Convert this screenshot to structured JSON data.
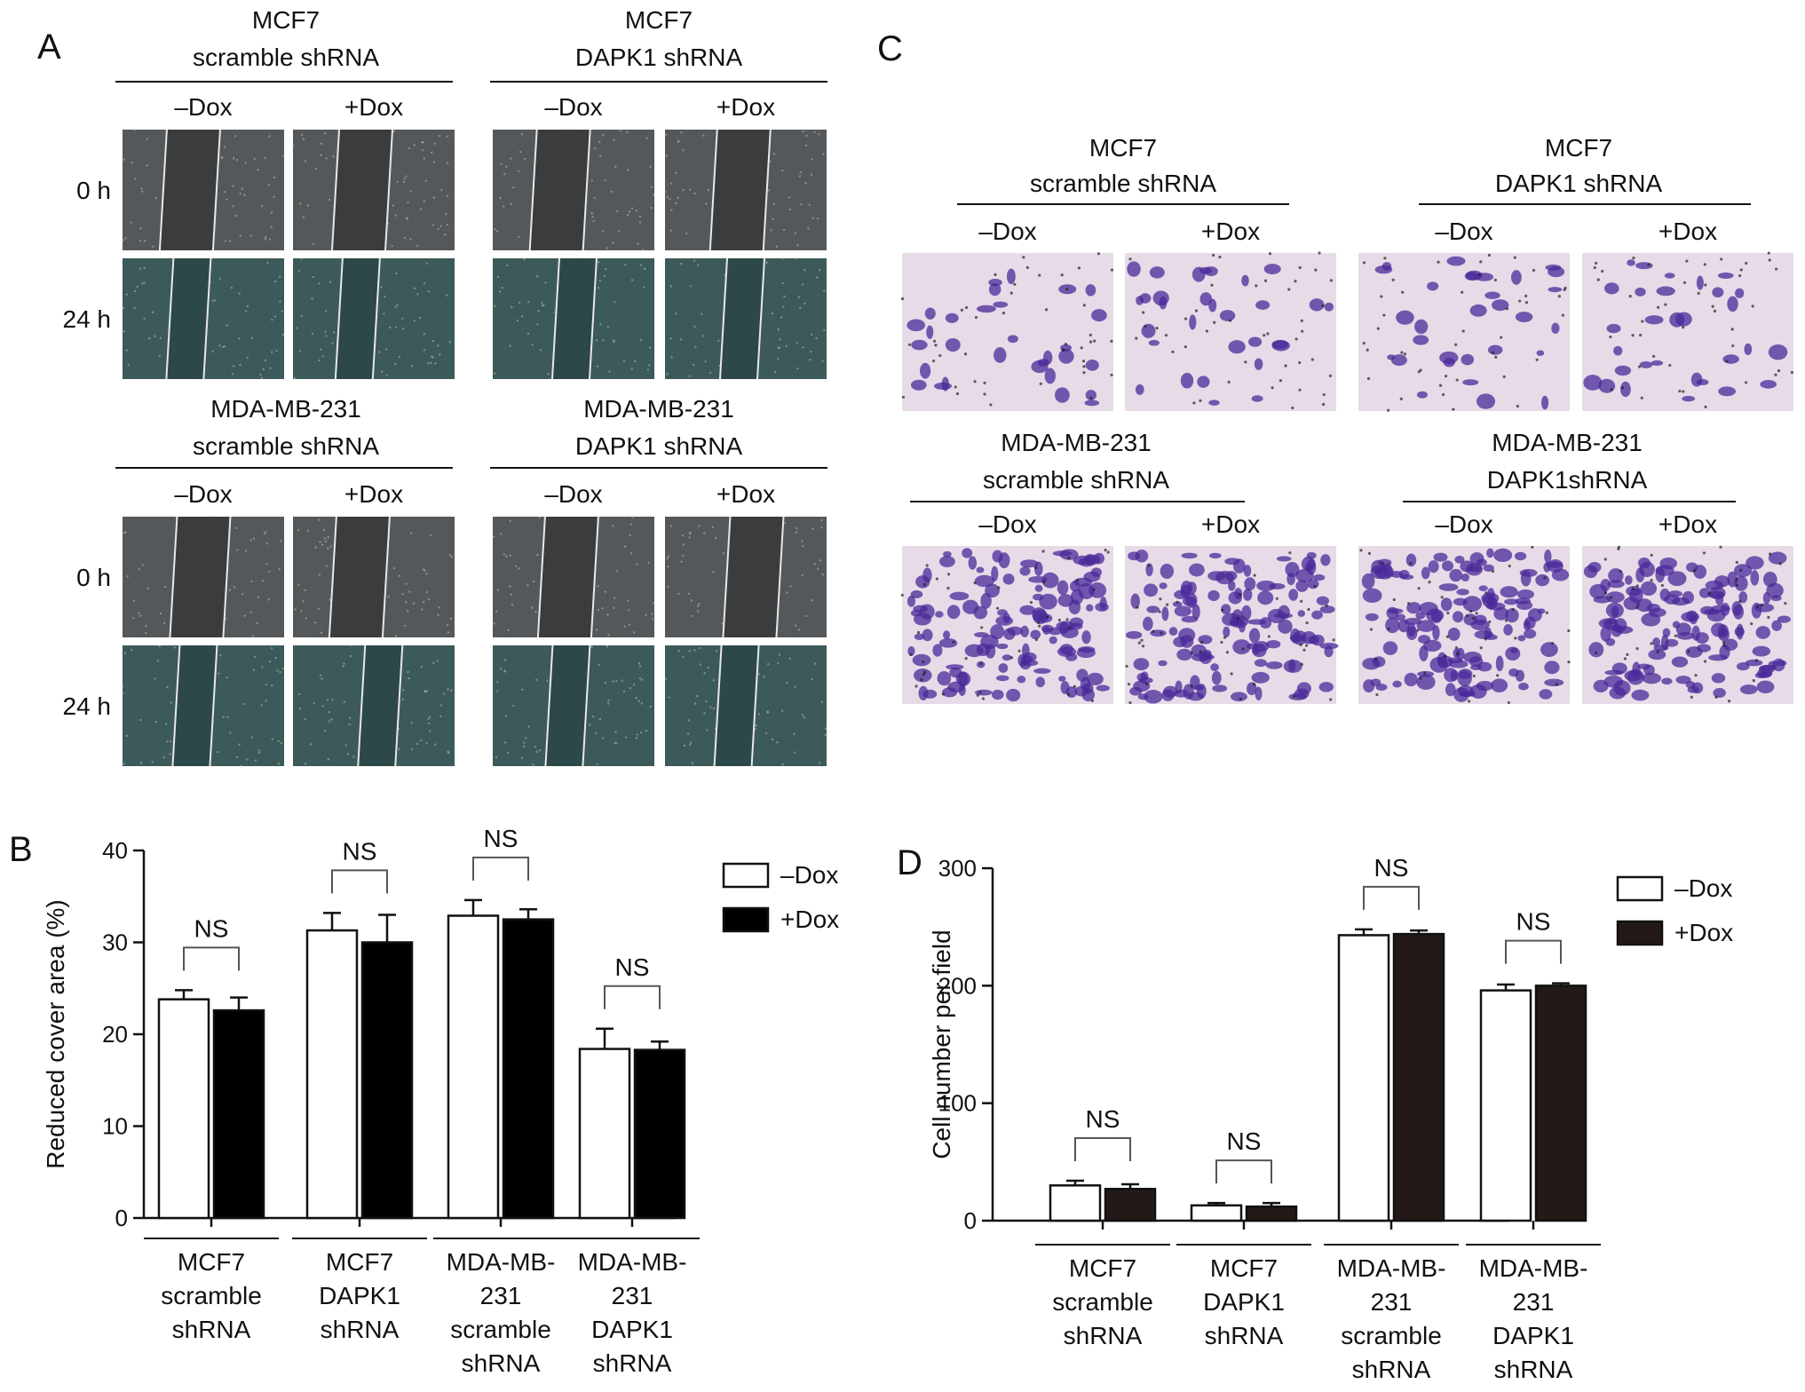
{
  "panel_labels": {
    "A": "A",
    "B": "B",
    "C": "C",
    "D": "D"
  },
  "panel_A": {
    "blocks": [
      {
        "cell_line": "MCF7",
        "construct": "scramble shRNA",
        "conditions": [
          "–Dox",
          "+Dox"
        ]
      },
      {
        "cell_line": "MCF7",
        "construct": "DAPK1 shRNA",
        "conditions": [
          "–Dox",
          "+Dox"
        ]
      },
      {
        "cell_line": "MDA-MB-231",
        "construct": "scramble shRNA",
        "conditions": [
          "–Dox",
          "+Dox"
        ]
      },
      {
        "cell_line": "MDA-MB-231",
        "construct": "DAPK1 shRNA",
        "conditions": [
          "–Dox",
          "+Dox"
        ]
      }
    ],
    "time_labels": [
      "0 h",
      "24 h"
    ],
    "image_colors": {
      "0 h": "#55585a",
      "24 h": "#3c5a5a"
    }
  },
  "panel_C": {
    "blocks": [
      {
        "cell_line": "MCF7",
        "construct": "scramble shRNA",
        "conditions": [
          "–Dox",
          "+Dox"
        ]
      },
      {
        "cell_line": "MCF7",
        "construct": "DAPK1 shRNA",
        "conditions": [
          "–Dox",
          "+Dox"
        ]
      },
      {
        "cell_line": "MDA-MB-231",
        "construct": "scramble shRNA",
        "conditions": [
          "–Dox",
          "+Dox"
        ]
      },
      {
        "cell_line": "MDA-MB-231",
        "construct": "DAPK1shRNA",
        "conditions": [
          "–Dox",
          "+Dox"
        ]
      }
    ],
    "background_color": "#e7dbe8",
    "stain_color": "#4a2a9a"
  },
  "chart_data": [
    {
      "panel": "B",
      "type": "bar",
      "ylabel": "Reduced cover area (%)",
      "ylim": [
        0,
        40
      ],
      "yticks": [
        0,
        10,
        20,
        30,
        40
      ],
      "categories": [
        [
          "MCF7",
          "scramble",
          "shRNA"
        ],
        [
          "MCF7",
          "DAPK1",
          "shRNA"
        ],
        [
          "MDA-MB-",
          "231",
          "scramble",
          "shRNA"
        ],
        [
          "MDA-MB-",
          "231",
          "DAPK1",
          "shRNA"
        ]
      ],
      "series": [
        {
          "name": "–Dox",
          "color": "#ffffff",
          "values": [
            23.8,
            31.3,
            32.9,
            18.4
          ],
          "errors": [
            1.0,
            1.9,
            1.7,
            2.2
          ]
        },
        {
          "name": "+Dox",
          "color": "#000000",
          "values": [
            22.6,
            30.0,
            32.5,
            18.3
          ],
          "errors": [
            1.4,
            3.0,
            1.1,
            0.9
          ]
        }
      ],
      "annotations": [
        "NS",
        "NS",
        "NS",
        "NS"
      ],
      "legend_position": "top-right",
      "grid": false
    },
    {
      "panel": "D",
      "type": "bar",
      "ylabel": "Cell number per field",
      "ylim": [
        0,
        300
      ],
      "yticks": [
        0,
        100,
        200,
        300
      ],
      "categories": [
        [
          "MCF7",
          "scramble",
          "shRNA"
        ],
        [
          "MCF7",
          "DAPK1",
          "shRNA"
        ],
        [
          "MDA-MB-",
          "231",
          "scramble",
          "shRNA"
        ],
        [
          "MDA-MB-",
          "231",
          "DAPK1",
          "shRNA"
        ]
      ],
      "series": [
        {
          "name": "–Dox",
          "color": "#ffffff",
          "values": [
            30,
            13,
            243,
            196
          ],
          "errors": [
            4,
            2,
            5,
            5
          ]
        },
        {
          "name": "+Dox",
          "color": "#231a17",
          "values": [
            27,
            12,
            244,
            200
          ],
          "errors": [
            4,
            3,
            3,
            2
          ]
        }
      ],
      "annotations": [
        "NS",
        "NS",
        "NS",
        "NS"
      ],
      "legend_position": "top-right",
      "grid": false
    }
  ]
}
